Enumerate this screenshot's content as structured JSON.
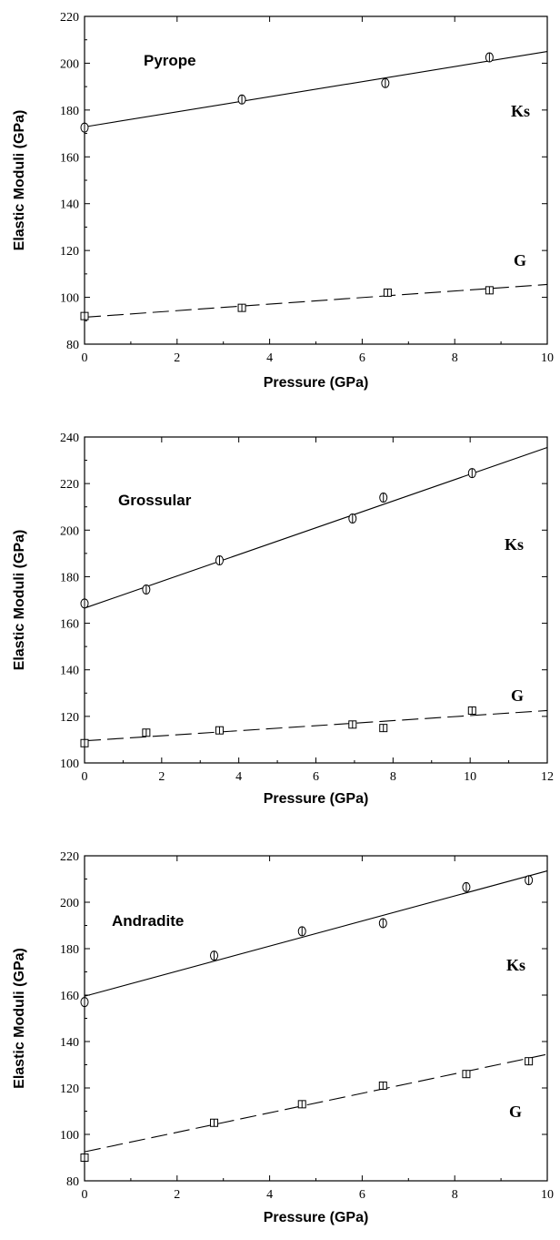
{
  "chart_data": [
    {
      "type": "scatter",
      "title": "Pyrope",
      "xlabel": "Pressure  (GPa)",
      "ylabel": "Elastic  Moduli  (GPa)",
      "xlim": [
        0,
        10
      ],
      "ylim": [
        80,
        220
      ],
      "xticks": [
        0,
        2,
        4,
        6,
        8,
        10
      ],
      "yticks": [
        80,
        100,
        120,
        140,
        160,
        180,
        200,
        220
      ],
      "grid": false,
      "series": [
        {
          "name": "Ks",
          "marker": "circle",
          "x": [
            0,
            3.4,
            6.5,
            8.75
          ],
          "y": [
            172.5,
            184.5,
            191.5,
            202.5
          ],
          "fit": {
            "style": "solid",
            "x": [
              0,
              10
            ],
            "y": [
              172.8,
              205.0
            ]
          }
        },
        {
          "name": "G",
          "marker": "square",
          "x": [
            0,
            3.4,
            6.55,
            8.75
          ],
          "y": [
            92.0,
            95.5,
            102.0,
            103.0
          ],
          "fit": {
            "style": "dashed",
            "x": [
              0,
              10
            ],
            "y": [
              91.5,
              105.5
            ]
          }
        }
      ]
    },
    {
      "type": "scatter",
      "title": "Grossular",
      "xlabel": "Pressure  (GPa)",
      "ylabel": "Elastic Moduli (GPa)",
      "xlim": [
        0,
        12
      ],
      "ylim": [
        100,
        240
      ],
      "xticks": [
        0,
        2,
        4,
        6,
        8,
        10,
        12
      ],
      "yticks": [
        100,
        120,
        140,
        160,
        180,
        200,
        220,
        240
      ],
      "grid": false,
      "series": [
        {
          "name": "Ks",
          "marker": "circle",
          "x": [
            0,
            1.6,
            3.5,
            6.95,
            7.75,
            10.05
          ],
          "y": [
            168.5,
            174.5,
            187.0,
            205.0,
            214.0,
            224.5
          ],
          "fit": {
            "style": "solid",
            "x": [
              0,
              12
            ],
            "y": [
              166.5,
              235.5
            ]
          }
        },
        {
          "name": "G",
          "marker": "square",
          "x": [
            0,
            1.6,
            3.5,
            6.95,
            7.75,
            10.05
          ],
          "y": [
            108.5,
            113.0,
            114.0,
            116.5,
            115.0,
            122.5
          ],
          "fit": {
            "style": "dashed",
            "x": [
              0,
              12
            ],
            "y": [
              109.5,
              122.5
            ]
          }
        }
      ]
    },
    {
      "type": "scatter",
      "title": "Andradite",
      "xlabel": "Pressure (GPa)",
      "ylabel": "Elastic Moduli (GPa)",
      "xlim": [
        0,
        10
      ],
      "ylim": [
        80,
        220
      ],
      "xticks": [
        0,
        2,
        4,
        6,
        8,
        10
      ],
      "yticks": [
        80,
        100,
        120,
        140,
        160,
        180,
        200,
        220
      ],
      "grid": false,
      "series": [
        {
          "name": "Ks",
          "marker": "circle",
          "x": [
            0,
            2.8,
            4.7,
            6.45,
            8.25,
            9.6
          ],
          "y": [
            157.0,
            177.0,
            187.5,
            191.0,
            206.5,
            209.5
          ],
          "fit": {
            "style": "solid",
            "x": [
              0,
              10
            ],
            "y": [
              159.5,
              213.5
            ]
          }
        },
        {
          "name": "G",
          "marker": "square",
          "x": [
            0,
            2.8,
            4.7,
            6.45,
            8.25,
            9.6
          ],
          "y": [
            90.0,
            105.0,
            113.0,
            121.0,
            126.0,
            131.5
          ],
          "fit": {
            "style": "dashed",
            "x": [
              0,
              10
            ],
            "y": [
              92.5,
              134.5
            ]
          }
        }
      ]
    }
  ]
}
